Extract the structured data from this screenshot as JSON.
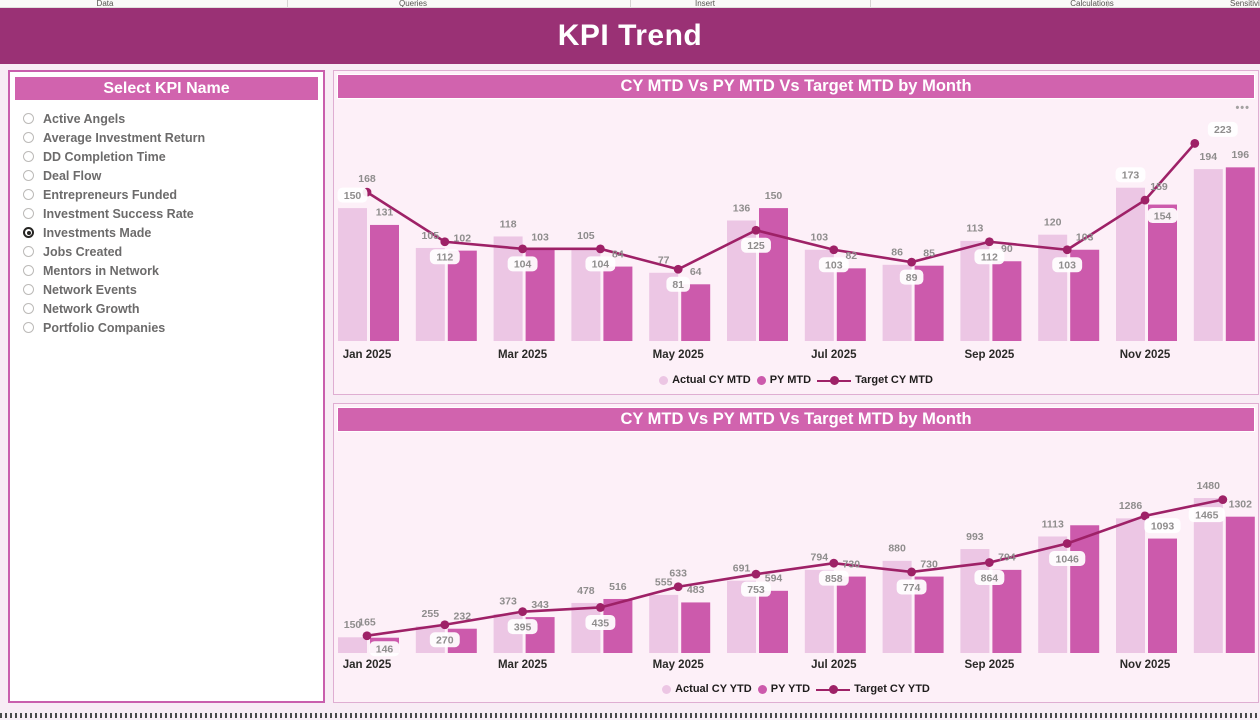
{
  "ribbon": {
    "tabs": [
      "Data",
      "Queries",
      "Insert",
      "Calculations",
      "Sensitivity"
    ]
  },
  "header": {
    "title": "KPI Trend"
  },
  "kpi_slicer": {
    "title": "Select KPI Name",
    "options": [
      "Active Angels",
      "Average Investment Return",
      "DD Completion Time",
      "Deal Flow",
      "Entrepreneurs Funded",
      "Investment Success Rate",
      "Investments Made",
      "Jobs Created",
      "Mentors in Network",
      "Network Events",
      "Network Growth",
      "Portfolio Companies"
    ],
    "selected": "Investments Made"
  },
  "chart_data": [
    {
      "type": "bar+line combo",
      "title": "CY MTD Vs PY MTD Vs Target MTD by Month",
      "categories": [
        "Jan 2025",
        "Feb 2025",
        "Mar 2025",
        "Apr 2025",
        "May 2025",
        "Jun 2025",
        "Jul 2025",
        "Aug 2025",
        "Sep 2025",
        "Oct 2025",
        "Nov 2025",
        "Dec 2025"
      ],
      "x_axis_labels_shown": [
        "Jan 2025",
        "Mar 2025",
        "May 2025",
        "Jul 2025",
        "Sep 2025",
        "Nov 2025"
      ],
      "ylim": [
        0,
        260
      ],
      "grid": false,
      "legend_position": "bottom",
      "options_icon": "more-options",
      "series": [
        {
          "name": "Actual CY MTD",
          "role": "bar-light",
          "values": [
            150,
            105,
            118,
            105,
            77,
            136,
            103,
            86,
            113,
            120,
            173,
            194
          ],
          "label_pos": [
            "above",
            "above",
            "above",
            "above",
            "above",
            "above",
            "above",
            "above",
            "above",
            "above",
            "above",
            "above"
          ],
          "label_pill": [
            true,
            false,
            false,
            false,
            false,
            false,
            false,
            false,
            false,
            false,
            true,
            false
          ]
        },
        {
          "name": "PY MTD",
          "role": "bar-dark",
          "values": [
            131,
            102,
            103,
            84,
            64,
            150,
            82,
            85,
            90,
            103,
            154,
            196
          ],
          "label_pos": [
            "above",
            "above",
            "above",
            "above",
            "above",
            "above",
            "above",
            "above",
            "above",
            "above",
            "inside",
            "above"
          ],
          "label_pill": [
            false,
            false,
            false,
            false,
            false,
            false,
            false,
            false,
            false,
            false,
            true,
            false
          ]
        },
        {
          "name": "Target CY MTD",
          "role": "line",
          "values": [
            168,
            112,
            104,
            104,
            81,
            125,
            103,
            89,
            112,
            103,
            159,
            223
          ],
          "label_pos": [
            "above",
            "below",
            "below",
            "below",
            "below",
            "below",
            "below",
            "below",
            "below",
            "below",
            "above",
            "above"
          ],
          "label_pill": [
            false,
            true,
            true,
            true,
            true,
            true,
            true,
            true,
            true,
            true,
            false,
            true
          ],
          "label_dx": [
            0,
            0,
            0,
            0,
            0,
            0,
            0,
            0,
            0,
            0,
            14,
            28
          ],
          "dot_dx": [
            0,
            0,
            0,
            0,
            0,
            0,
            0,
            0,
            0,
            0,
            0,
            -28
          ]
        }
      ]
    },
    {
      "type": "bar+line combo",
      "title": "CY MTD Vs PY MTD Vs Target MTD by Month",
      "categories": [
        "Jan 2025",
        "Feb 2025",
        "Mar 2025",
        "Apr 2025",
        "May 2025",
        "Jun 2025",
        "Jul 2025",
        "Aug 2025",
        "Sep 2025",
        "Oct 2025",
        "Nov 2025",
        "Dec 2025"
      ],
      "x_axis_labels_shown": [
        "Jan 2025",
        "Mar 2025",
        "May 2025",
        "Jul 2025",
        "Sep 2025",
        "Nov 2025"
      ],
      "ylim": [
        0,
        2025
      ],
      "grid": false,
      "legend_position": "bottom",
      "series": [
        {
          "name": "Actual CY YTD",
          "role": "bar-light",
          "values": [
            150,
            255,
            373,
            478,
            555,
            691,
            794,
            880,
            993,
            1113,
            1286,
            1480
          ],
          "label_pos": [
            "above",
            "above",
            "above",
            "above",
            "above",
            "above",
            "above",
            "above",
            "above",
            "above",
            "above",
            "above"
          ],
          "label_pill": [
            false,
            false,
            false,
            false,
            false,
            false,
            false,
            false,
            false,
            false,
            false,
            false
          ]
        },
        {
          "name": "PY YTD",
          "role": "bar-dark",
          "values": [
            146,
            232,
            343,
            516,
            483,
            594,
            730,
            730,
            794,
            1220,
            1093,
            1302
          ],
          "label_pos": [
            "inside",
            "above",
            "above",
            "above",
            "above",
            "above",
            "above",
            "above",
            "above",
            "hidden",
            "above",
            "above"
          ],
          "label_pill": [
            true,
            false,
            false,
            false,
            false,
            false,
            false,
            false,
            false,
            false,
            true,
            false
          ]
        },
        {
          "name": "Target CY YTD",
          "role": "line",
          "values": [
            165,
            270,
            395,
            435,
            633,
            753,
            858,
            774,
            864,
            1046,
            1310,
            1465
          ],
          "label_pos": [
            "above",
            "below",
            "below",
            "below",
            "above",
            "below",
            "below",
            "below",
            "below",
            "below",
            "hidden",
            "below"
          ],
          "label_pill": [
            false,
            true,
            true,
            true,
            false,
            true,
            true,
            true,
            true,
            true,
            false,
            true
          ],
          "label_dx": [
            0,
            0,
            0,
            0,
            0,
            0,
            0,
            0,
            0,
            0,
            0,
            -16
          ],
          "dot_dx": [
            0,
            0,
            0,
            0,
            0,
            0,
            0,
            0,
            0,
            0,
            0,
            0
          ]
        }
      ]
    }
  ],
  "colors": {
    "accent": "#9a3175",
    "banner": "#d163ae",
    "bar_light": "#ecc6e4",
    "bar_dark": "#cc5aac",
    "target_line": "#9e2167",
    "chart_bg": "#fdf0f8",
    "page_bg": "#f8ecf5",
    "panel_border": "#c95fad",
    "chart_border": "#dfaed2",
    "label_gray": "#8f8d8d",
    "axis_text": "#2b2a28"
  }
}
